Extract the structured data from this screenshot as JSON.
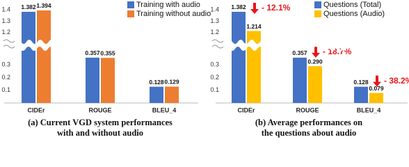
{
  "chart_data": [
    {
      "type": "bar",
      "categories": [
        "CIDEr",
        "ROUGE",
        "BLEU_4"
      ],
      "series": [
        {
          "name": "Training with audio",
          "color": "#4472c4",
          "values": [
            1.382,
            0.357,
            0.128
          ],
          "value_labels": [
            "1.382",
            "0.357",
            "0.128"
          ]
        },
        {
          "name": "Training without audio",
          "color": "#ed7d31",
          "values": [
            1.394,
            0.355,
            0.129
          ],
          "value_labels": [
            "1.394",
            "0.355",
            "0.129"
          ]
        }
      ],
      "ylim": [
        0,
        1.4
      ],
      "ybreak": [
        0.4,
        1.15
      ],
      "yticks": [
        0.1,
        0.2,
        0.3,
        1.2,
        1.3,
        1.4
      ],
      "legend": "top-right",
      "caption": [
        "(a) Current VGD system performances",
        "with and without audio"
      ]
    },
    {
      "type": "bar",
      "categories": [
        "CIDEr",
        "ROUGE",
        "BLEU_4"
      ],
      "series": [
        {
          "name": "Questions (Total)",
          "color": "#4472c4",
          "values": [
            1.382,
            0.357,
            0.128
          ],
          "value_labels": [
            "1.382",
            "0.357",
            "0.128"
          ]
        },
        {
          "name": "Questions (Audio)",
          "color": "#ffc000",
          "values": [
            1.214,
            0.29,
            0.079
          ],
          "value_labels": [
            "1.214",
            "0.290",
            "0.079"
          ]
        }
      ],
      "ylim": [
        0,
        1.4
      ],
      "ybreak": [
        0.4,
        1.15
      ],
      "yticks": [
        0.1,
        0.2,
        0.3,
        1.2,
        1.3,
        1.4
      ],
      "legend": "top-right",
      "annotations": [
        "- 12.1%",
        "- 18.7%",
        "- 38.2%"
      ],
      "annotation_color": "#e8161b",
      "caption": [
        "(b) Average performances on",
        "the questions about audio"
      ]
    }
  ]
}
